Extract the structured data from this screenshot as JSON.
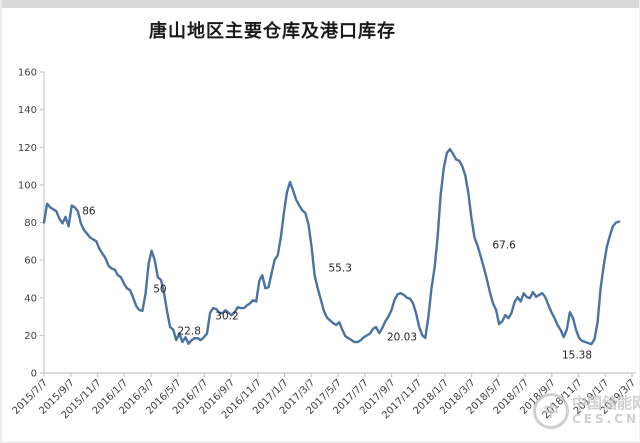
{
  "chart_data": {
    "type": "line",
    "title": "唐山地区主要仓库及港口库存",
    "ylim": [
      0,
      160
    ],
    "y_ticks": [
      0,
      20,
      40,
      60,
      80,
      100,
      120,
      140,
      160
    ],
    "x_tick_labels": [
      "2015/7/7",
      "2015/9/7",
      "2015/11/7",
      "2016/1/7",
      "2016/3/7",
      "2016/5/7",
      "2016/7/7",
      "2016/9/7",
      "2016/11/7",
      "2017/1/7",
      "2017/3/7",
      "2017/5/7",
      "2017/7/7",
      "2017/9/7",
      "2017/11/7",
      "2018/1/7",
      "2018/3/7",
      "2018/5/7",
      "2018/7/7",
      "2018/9/7",
      "2018/11/7",
      "2019/1/7",
      "2019/3/7"
    ],
    "x_span_weeks": 191.2,
    "grid": false,
    "legend": null,
    "series": [
      {
        "sampling": "weekly",
        "values": [
          80,
          90,
          88,
          87,
          86,
          82,
          79.5,
          83,
          78,
          89,
          88,
          86,
          79.5,
          76,
          74,
          72,
          71,
          70,
          66,
          63.5,
          61,
          57,
          55.5,
          55,
          52,
          51,
          47.5,
          45,
          44,
          40,
          35.5,
          33.5,
          33,
          42,
          58,
          65,
          60,
          51,
          49.5,
          43,
          33,
          24.4,
          23,
          17.5,
          21,
          16.5,
          19,
          15.5,
          17.5,
          18.5,
          18.5,
          17.5,
          19,
          21,
          32,
          34.5,
          34,
          32,
          31.8,
          33.4,
          32,
          30.8,
          32.3,
          35,
          34.5,
          34.5,
          36,
          37,
          38.7,
          38,
          49,
          52,
          45,
          45.6,
          53,
          60,
          62.5,
          72,
          85,
          96,
          101.5,
          97,
          92,
          89,
          86.5,
          85,
          79,
          67,
          52,
          45,
          39,
          33,
          29.5,
          28,
          26.5,
          25.5,
          27,
          23,
          19.5,
          18.5,
          17.5,
          16.4,
          16.4,
          17.5,
          19,
          20,
          21,
          23.5,
          24.4,
          21.2,
          23.9,
          27.5,
          30,
          33.5,
          39,
          41.9,
          42.4,
          41.5,
          40,
          39.5,
          37.1,
          31.8,
          24.4,
          20.03,
          18.6,
          30,
          45,
          56,
          72,
          95,
          109,
          117,
          119,
          116.5,
          113.5,
          112.9,
          110,
          105,
          95.5,
          82,
          72,
          67.6,
          62,
          56,
          50,
          43,
          37,
          33.5,
          26,
          27.5,
          30.8,
          29.2,
          31.8,
          37.6,
          40.3,
          38,
          42.4,
          40.3,
          39.8,
          43,
          40.5,
          41.5,
          42.4,
          40.3,
          36.1,
          32.3,
          29.2,
          25.4,
          22.8,
          19.1,
          23,
          32.3,
          29.2,
          23,
          18.6,
          17,
          16.5,
          15.9,
          15.38,
          18,
          27,
          45,
          57,
          67,
          73,
          78,
          80,
          80.5
        ]
      }
    ],
    "annotations": [
      {
        "text": "86",
        "week": 14.6,
        "value": 86.1
      },
      {
        "text": "50",
        "week": 37.7,
        "value": 44.7
      },
      {
        "text": "22.8",
        "week": 47.2,
        "value": 22.3
      },
      {
        "text": "30.2",
        "week": 59.5,
        "value": 30.3
      },
      {
        "text": "55.3",
        "week": 96.3,
        "value": 55.8
      },
      {
        "text": "20.03",
        "week": 116.4,
        "value": 19.1
      },
      {
        "text": "67.6",
        "week": 149.6,
        "value": 68.0
      },
      {
        "text": "15.38",
        "week": 173.3,
        "value": 9.6
      }
    ]
  },
  "watermark": {
    "logo_glyph": "中",
    "line1": "中国储能网",
    "line2": "CES.CN"
  },
  "colors": {
    "line": "#4A72A3",
    "axis": "#C8C8C8",
    "tick_label": "#404040",
    "title": "#1A1A1A",
    "annotation": "#262626",
    "watermark": "#C6C6C6",
    "top_bar": "#D9D9D9"
  }
}
